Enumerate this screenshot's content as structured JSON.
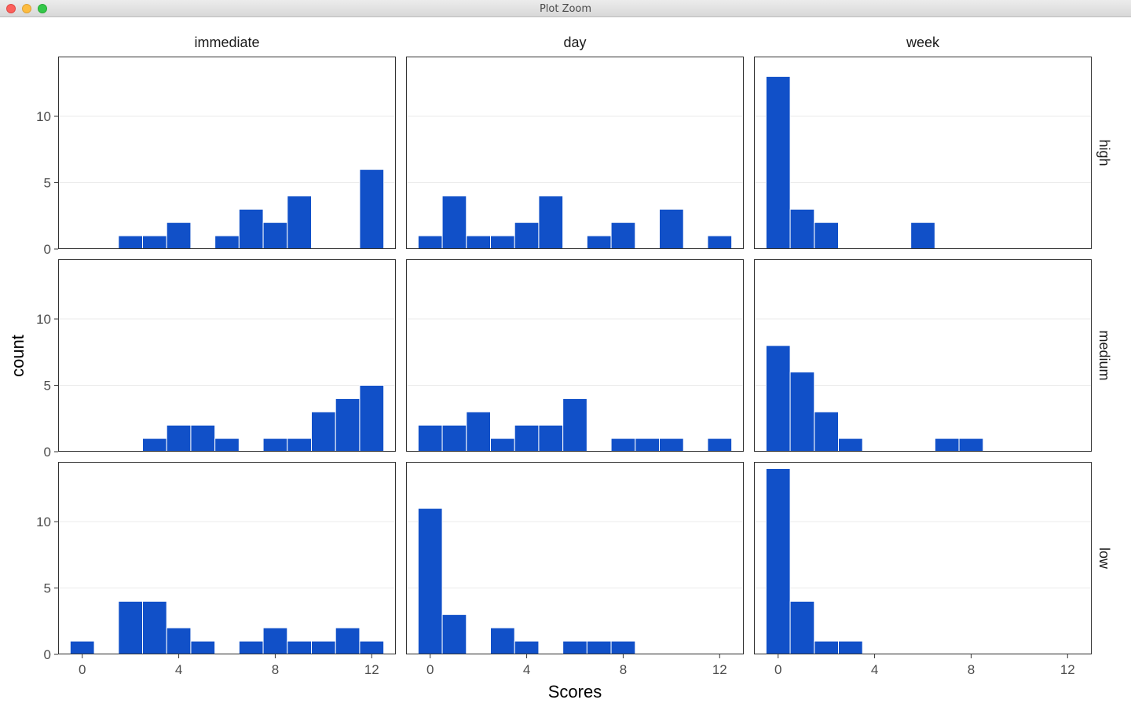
{
  "window": {
    "title": "Plot Zoom"
  },
  "chart_data": {
    "type": "bar",
    "subtype": "faceted histogram",
    "xlabel": "Scores",
    "ylabel": "count",
    "columns": [
      "immediate",
      "day",
      "week"
    ],
    "rows": [
      "high",
      "medium",
      "low"
    ],
    "bin_width": 1,
    "xlim": [
      -1,
      13
    ],
    "ylim": [
      0,
      14.5
    ],
    "x_ticks": [
      0,
      4,
      8,
      12
    ],
    "y_ticks": [
      0,
      5,
      10
    ],
    "grid": true,
    "colors": {
      "bar": "#1150c8",
      "bar_outline": "#ffffff",
      "panel_border": "#333333",
      "grid": "#ebebeb"
    },
    "panels": [
      {
        "col": "immediate",
        "row": "high",
        "bins": [
          [
            2,
            1
          ],
          [
            3,
            1
          ],
          [
            4,
            2
          ],
          [
            6,
            1
          ],
          [
            7,
            3
          ],
          [
            8,
            2
          ],
          [
            9,
            4
          ],
          [
            12,
            6
          ]
        ]
      },
      {
        "col": "day",
        "row": "high",
        "bins": [
          [
            0,
            1
          ],
          [
            1,
            4
          ],
          [
            2,
            1
          ],
          [
            3,
            1
          ],
          [
            4,
            2
          ],
          [
            5,
            4
          ],
          [
            7,
            1
          ],
          [
            8,
            2
          ],
          [
            10,
            3
          ],
          [
            12,
            1
          ]
        ]
      },
      {
        "col": "week",
        "row": "high",
        "bins": [
          [
            0,
            13
          ],
          [
            1,
            3
          ],
          [
            2,
            2
          ],
          [
            6,
            2
          ]
        ]
      },
      {
        "col": "immediate",
        "row": "medium",
        "bins": [
          [
            3,
            1
          ],
          [
            4,
            2
          ],
          [
            5,
            2
          ],
          [
            6,
            1
          ],
          [
            8,
            1
          ],
          [
            9,
            1
          ],
          [
            10,
            3
          ],
          [
            11,
            4
          ],
          [
            12,
            5
          ]
        ]
      },
      {
        "col": "day",
        "row": "medium",
        "bins": [
          [
            0,
            2
          ],
          [
            1,
            2
          ],
          [
            2,
            3
          ],
          [
            3,
            1
          ],
          [
            4,
            2
          ],
          [
            5,
            2
          ],
          [
            6,
            4
          ],
          [
            8,
            1
          ],
          [
            9,
            1
          ],
          [
            10,
            1
          ],
          [
            12,
            1
          ]
        ]
      },
      {
        "col": "week",
        "row": "medium",
        "bins": [
          [
            0,
            8
          ],
          [
            1,
            6
          ],
          [
            2,
            3
          ],
          [
            3,
            1
          ],
          [
            7,
            1
          ],
          [
            8,
            1
          ]
        ]
      },
      {
        "col": "immediate",
        "row": "low",
        "bins": [
          [
            0,
            1
          ],
          [
            2,
            4
          ],
          [
            3,
            4
          ],
          [
            4,
            2
          ],
          [
            5,
            1
          ],
          [
            7,
            1
          ],
          [
            8,
            2
          ],
          [
            9,
            1
          ],
          [
            10,
            1
          ],
          [
            11,
            2
          ],
          [
            12,
            1
          ]
        ]
      },
      {
        "col": "day",
        "row": "low",
        "bins": [
          [
            0,
            11
          ],
          [
            1,
            3
          ],
          [
            3,
            2
          ],
          [
            4,
            1
          ],
          [
            6,
            1
          ],
          [
            7,
            1
          ],
          [
            8,
            1
          ]
        ]
      },
      {
        "col": "week",
        "row": "low",
        "bins": [
          [
            0,
            14
          ],
          [
            1,
            4
          ],
          [
            2,
            1
          ],
          [
            3,
            1
          ]
        ]
      }
    ]
  }
}
